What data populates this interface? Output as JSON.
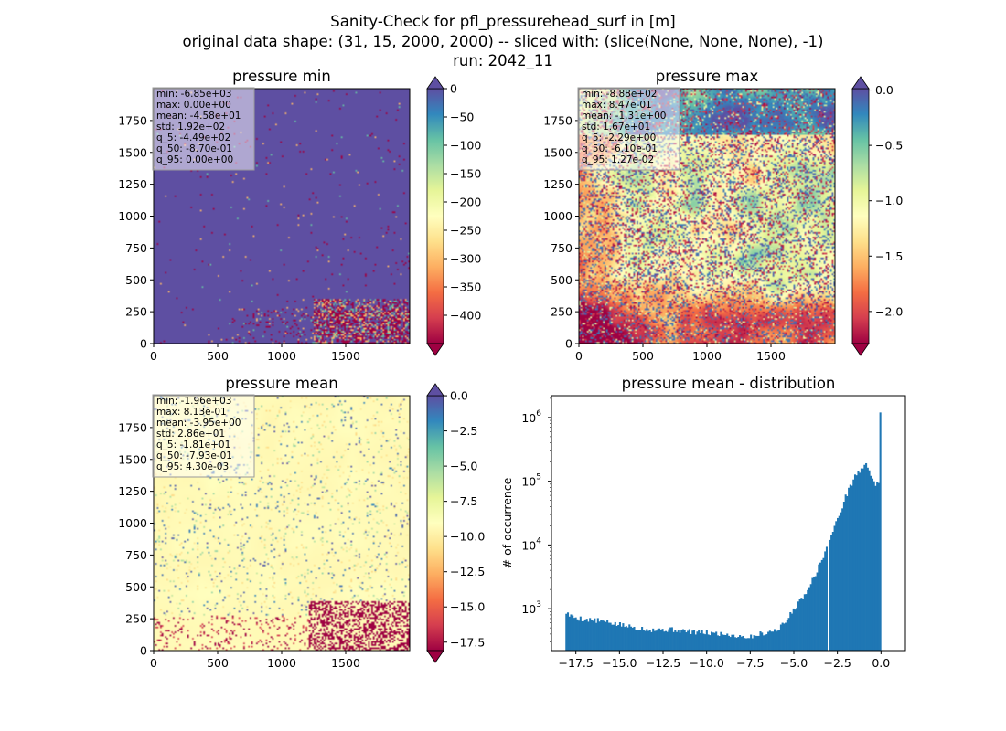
{
  "suptitle": [
    "Sanity-Check for pfl_pressurehead_surf in [m]",
    "original data shape: (31, 15, 2000, 2000) -- sliced with: (slice(None, None, None), -1)",
    "run: 2042_11"
  ],
  "colors": {
    "spectral": [
      "#9e0142",
      "#d53e4f",
      "#f46d43",
      "#fdae61",
      "#fee08b",
      "#ffffbf",
      "#e6f598",
      "#abdda4",
      "#66c2a5",
      "#3288bd",
      "#5e4fa2"
    ],
    "hist_bar": "#1f77b4",
    "stats_box_bg": "#ffffff"
  },
  "chart_data": [
    {
      "type": "heatmap",
      "title": "pressure min",
      "colormap": "Spectral",
      "xlim": [
        0,
        2000
      ],
      "ylim": [
        0,
        2000
      ],
      "xticks": [
        "0",
        "500",
        "1000",
        "1500"
      ],
      "yticks": [
        "0",
        "250",
        "500",
        "750",
        "1000",
        "1250",
        "1500",
        "1750"
      ],
      "colorbar": {
        "vmin": -450,
        "vmax": 0,
        "extend": "both",
        "ticks": [
          "0",
          "−50",
          "−100",
          "−150",
          "−200",
          "−250",
          "−300",
          "−350",
          "−400"
        ],
        "tick_values": [
          0,
          -50,
          -100,
          -150,
          -200,
          -250,
          -300,
          -350,
          -400
        ]
      },
      "stats": [
        "min: -6.85e+03",
        "max: 0.00e+00",
        "mean: -4.58e+01",
        "std: 1.92e+02",
        "q_5: -4.49e+02",
        "q_50: -8.70e-01",
        "q_95: 0.00e+00"
      ],
      "dominant_value": 0
    },
    {
      "type": "heatmap",
      "title": "pressure max",
      "colormap": "Spectral",
      "xlim": [
        0,
        2000
      ],
      "ylim": [
        0,
        2000
      ],
      "xticks": [
        "0",
        "500",
        "1000",
        "1500"
      ],
      "yticks": [
        "0",
        "250",
        "500",
        "750",
        "1000",
        "1250",
        "1500",
        "1750"
      ],
      "colorbar": {
        "vmin": -2.29,
        "vmax": 0.0127,
        "extend": "both",
        "ticks": [
          "0.0",
          "−0.5",
          "−1.0",
          "−1.5",
          "−2.0"
        ],
        "tick_values": [
          0.0,
          -0.5,
          -1.0,
          -1.5,
          -2.0
        ]
      },
      "stats": [
        "min: -8.88e+02",
        "max: 8.47e-01",
        "mean: -1.31e+00",
        "std: 1.67e+01",
        "q_5: -2.29e+00",
        "q_50: -6.10e-01",
        "q_95: 1.27e-02"
      ]
    },
    {
      "type": "heatmap",
      "title": "pressure mean",
      "colormap": "Spectral",
      "xlim": [
        0,
        2000
      ],
      "ylim": [
        0,
        2000
      ],
      "xticks": [
        "0",
        "500",
        "1000",
        "1500"
      ],
      "yticks": [
        "0",
        "250",
        "500",
        "750",
        "1000",
        "1250",
        "1500",
        "1750"
      ],
      "colorbar": {
        "vmin": -18.1,
        "vmax": 0.0043,
        "extend": "both",
        "ticks": [
          "0.0",
          "−2.5",
          "−5.0",
          "−7.5",
          "−10.0",
          "−12.5",
          "−15.0",
          "−17.5"
        ],
        "tick_values": [
          0.0,
          -2.5,
          -5.0,
          -7.5,
          -10.0,
          -12.5,
          -15.0,
          -17.5
        ]
      },
      "stats": [
        "min: -1.96e+03",
        "max: 8.13e-01",
        "mean: -3.95e+00",
        "std: 2.86e+01",
        "q_5: -1.81e+01",
        "q_50: -7.93e-01",
        "q_95: 4.30e-03"
      ]
    },
    {
      "type": "bar",
      "title": "pressure mean - distribution",
      "ylabel": "# of occurrence",
      "xlabel": "",
      "yscale": "log",
      "xlim": [
        -18.9,
        1.4
      ],
      "ylim": [
        220,
        2200000
      ],
      "xticks": [
        "−17.5",
        "−15.0",
        "−12.5",
        "−10.0",
        "−7.5",
        "−5.0",
        "−2.5",
        "0.0"
      ],
      "xtick_values": [
        -17.5,
        -15.0,
        -12.5,
        -10.0,
        -7.5,
        -5.0,
        -2.5,
        0.0
      ],
      "yticks": [
        "10",
        "10",
        "10",
        "10"
      ],
      "ytick_exponents": [
        "3",
        "4",
        "5",
        "6"
      ],
      "ytick_values": [
        1000,
        10000,
        100000,
        1000000
      ],
      "bin_range": [
        -18.1,
        0.0
      ],
      "control_points": [
        [
          -18.1,
          900
        ],
        [
          -17.8,
          760
        ],
        [
          -17.0,
          680
        ],
        [
          -16.0,
          640
        ],
        [
          -15.0,
          560
        ],
        [
          -14.0,
          500
        ],
        [
          -13.0,
          470
        ],
        [
          -12.0,
          470
        ],
        [
          -11.0,
          440
        ],
        [
          -10.0,
          420
        ],
        [
          -9.0,
          400
        ],
        [
          -8.0,
          370
        ],
        [
          -7.5,
          360
        ],
        [
          -7.0,
          400
        ],
        [
          -6.5,
          430
        ],
        [
          -6.0,
          460
        ],
        [
          -5.5,
          600
        ],
        [
          -5.0,
          1000
        ],
        [
          -4.5,
          1500
        ],
        [
          -4.0,
          2600
        ],
        [
          -3.5,
          5000
        ],
        [
          -3.2,
          8000
        ],
        [
          -2.5,
          25000
        ],
        [
          -2.0,
          60000
        ],
        [
          -1.5,
          120000
        ],
        [
          -1.0,
          170000
        ],
        [
          -0.8,
          180000
        ],
        [
          -0.6,
          130000
        ],
        [
          -0.3,
          90000
        ],
        [
          -0.05,
          85000
        ],
        [
          0.0,
          1200000
        ]
      ],
      "gap_at": -3.0,
      "last_bin_value": 1200000
    }
  ]
}
